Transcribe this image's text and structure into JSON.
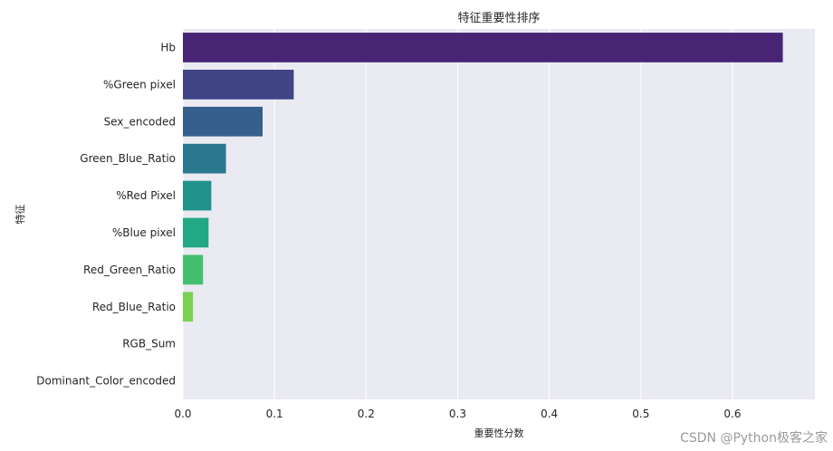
{
  "chart_data": {
    "type": "bar",
    "orientation": "horizontal",
    "title": "特征重要性排序",
    "xlabel": "重要性分数",
    "ylabel": "特征",
    "categories": [
      "Hb",
      "%Green pixel",
      "Sex_encoded",
      "Green_Blue_Ratio",
      "%Red Pixel",
      "%Blue pixel",
      "Red_Green_Ratio",
      "Red_Blue_Ratio",
      "RGB_Sum",
      "Dominant_Color_encoded"
    ],
    "values": [
      0.655,
      0.121,
      0.087,
      0.047,
      0.031,
      0.028,
      0.022,
      0.011,
      0.0,
      0.0
    ],
    "colors": [
      "#482475",
      "#414487",
      "#355f8d",
      "#2a788e",
      "#21918c",
      "#22a884",
      "#44bf70",
      "#7ad151",
      "#bddf26",
      "#fde725"
    ],
    "xlim": [
      0,
      0.69
    ],
    "xticks": [
      0.0,
      0.1,
      0.2,
      0.3,
      0.4,
      0.5,
      0.6
    ],
    "xtick_labels": [
      "0.0",
      "0.1",
      "0.2",
      "0.3",
      "0.4",
      "0.5",
      "0.6"
    ],
    "grid": true,
    "background": "#eaeaf2",
    "grid_color": "#ffffff"
  },
  "watermark": "CSDN @Python极客之家"
}
